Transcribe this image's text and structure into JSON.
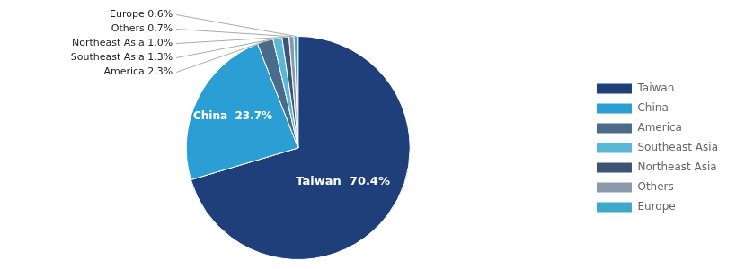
{
  "chart_data": {
    "type": "pie",
    "categories": [
      "Taiwan",
      "China",
      "America",
      "Southeast Asia",
      "Northeast Asia",
      "Others",
      "Europe"
    ],
    "values": [
      70.4,
      23.7,
      2.3,
      1.3,
      1.0,
      0.7,
      0.6
    ],
    "colors": [
      "#1e3f7a",
      "#2b9fd4",
      "#4a6b8a",
      "#5ab8d6",
      "#3d5575",
      "#8a9aaa",
      "#3fa8c8"
    ],
    "value_labels": [
      "Taiwan  70.4%",
      "China  23.7%",
      "America 2.3%",
      "Southeast Asia 1.3%",
      "Northeast Asia 1.0%",
      "Others 0.7%",
      "Europe 0.6%"
    ],
    "data_labels": true,
    "legend": "right"
  }
}
